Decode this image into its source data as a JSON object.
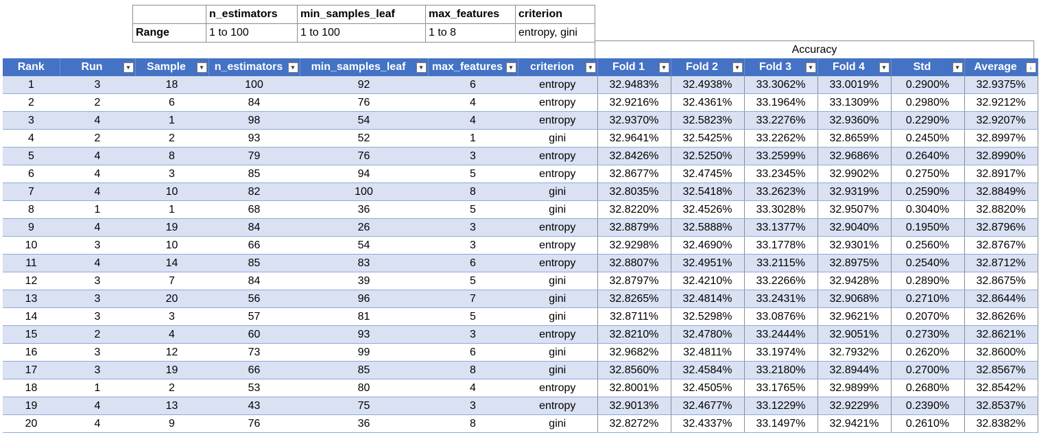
{
  "range_table": {
    "headers": [
      "n_estimators",
      "min_samples_leaf",
      "max_features",
      "criterion"
    ],
    "row_label": "Range",
    "values": [
      "1 to 100",
      "1 to 100",
      "1 to 8",
      "entropy, gini"
    ]
  },
  "accuracy_caption": "Accuracy",
  "columns": [
    "Rank",
    "Run",
    "Sample",
    "n_estimators",
    "min_samples_leaf",
    "max_features",
    "criterion",
    "Fold 1",
    "Fold 2",
    "Fold 3",
    "Fold 4",
    "Std",
    "Average"
  ],
  "filter_icons": [
    "",
    "dropdown",
    "dropdown",
    "dropdown",
    "dropdown",
    "dropdown",
    "dropdown",
    "dropdown",
    "dropdown",
    "dropdown",
    "dropdown",
    "dropdown",
    "sort-desc"
  ],
  "colors": {
    "header_bg": "#4472c4",
    "band_bg": "#d9e1f2"
  },
  "rows": [
    [
      "1",
      "3",
      "18",
      "100",
      "92",
      "6",
      "entropy",
      "32.9483%",
      "32.4938%",
      "33.3062%",
      "33.0019%",
      "0.2900%",
      "32.9375%"
    ],
    [
      "2",
      "2",
      "6",
      "84",
      "76",
      "4",
      "entropy",
      "32.9216%",
      "32.4361%",
      "33.1964%",
      "33.1309%",
      "0.2980%",
      "32.9212%"
    ],
    [
      "3",
      "4",
      "1",
      "98",
      "54",
      "4",
      "entropy",
      "32.9370%",
      "32.5823%",
      "33.2276%",
      "32.9360%",
      "0.2290%",
      "32.9207%"
    ],
    [
      "4",
      "2",
      "2",
      "93",
      "52",
      "1",
      "gini",
      "32.9641%",
      "32.5425%",
      "33.2262%",
      "32.8659%",
      "0.2450%",
      "32.8997%"
    ],
    [
      "5",
      "4",
      "8",
      "79",
      "76",
      "3",
      "entropy",
      "32.8426%",
      "32.5250%",
      "33.2599%",
      "32.9686%",
      "0.2640%",
      "32.8990%"
    ],
    [
      "6",
      "4",
      "3",
      "85",
      "94",
      "5",
      "entropy",
      "32.8677%",
      "32.4745%",
      "33.2345%",
      "32.9902%",
      "0.2750%",
      "32.8917%"
    ],
    [
      "7",
      "4",
      "10",
      "82",
      "100",
      "8",
      "gini",
      "32.8035%",
      "32.5418%",
      "33.2623%",
      "32.9319%",
      "0.2590%",
      "32.8849%"
    ],
    [
      "8",
      "1",
      "1",
      "68",
      "36",
      "5",
      "gini",
      "32.8220%",
      "32.4526%",
      "33.3028%",
      "32.9507%",
      "0.3040%",
      "32.8820%"
    ],
    [
      "9",
      "4",
      "19",
      "84",
      "26",
      "3",
      "entropy",
      "32.8879%",
      "32.5888%",
      "33.1377%",
      "32.9040%",
      "0.1950%",
      "32.8796%"
    ],
    [
      "10",
      "3",
      "10",
      "66",
      "54",
      "3",
      "entropy",
      "32.9298%",
      "32.4690%",
      "33.1778%",
      "32.9301%",
      "0.2560%",
      "32.8767%"
    ],
    [
      "11",
      "4",
      "14",
      "85",
      "83",
      "6",
      "entropy",
      "32.8807%",
      "32.4951%",
      "33.2115%",
      "32.8975%",
      "0.2540%",
      "32.8712%"
    ],
    [
      "12",
      "3",
      "7",
      "84",
      "39",
      "5",
      "gini",
      "32.8797%",
      "32.4210%",
      "33.2266%",
      "32.9428%",
      "0.2890%",
      "32.8675%"
    ],
    [
      "13",
      "3",
      "20",
      "56",
      "96",
      "7",
      "gini",
      "32.8265%",
      "32.4814%",
      "33.2431%",
      "32.9068%",
      "0.2710%",
      "32.8644%"
    ],
    [
      "14",
      "3",
      "3",
      "57",
      "81",
      "5",
      "gini",
      "32.8711%",
      "32.5298%",
      "33.0876%",
      "32.9621%",
      "0.2070%",
      "32.8626%"
    ],
    [
      "15",
      "2",
      "4",
      "60",
      "93",
      "3",
      "entropy",
      "32.8210%",
      "32.4780%",
      "33.2444%",
      "32.9051%",
      "0.2730%",
      "32.8621%"
    ],
    [
      "16",
      "3",
      "12",
      "73",
      "99",
      "6",
      "gini",
      "32.9682%",
      "32.4811%",
      "33.1974%",
      "32.7932%",
      "0.2620%",
      "32.8600%"
    ],
    [
      "17",
      "3",
      "19",
      "66",
      "85",
      "8",
      "gini",
      "32.8560%",
      "32.4584%",
      "33.2180%",
      "32.8944%",
      "0.2700%",
      "32.8567%"
    ],
    [
      "18",
      "1",
      "2",
      "53",
      "80",
      "4",
      "entropy",
      "32.8001%",
      "32.4505%",
      "33.1765%",
      "32.9899%",
      "0.2680%",
      "32.8542%"
    ],
    [
      "19",
      "4",
      "13",
      "43",
      "75",
      "3",
      "entropy",
      "32.9013%",
      "32.4677%",
      "33.1229%",
      "32.9229%",
      "0.2390%",
      "32.8537%"
    ],
    [
      "20",
      "4",
      "9",
      "76",
      "36",
      "8",
      "gini",
      "32.8272%",
      "32.4337%",
      "33.1497%",
      "32.9421%",
      "0.2610%",
      "32.8382%"
    ]
  ]
}
